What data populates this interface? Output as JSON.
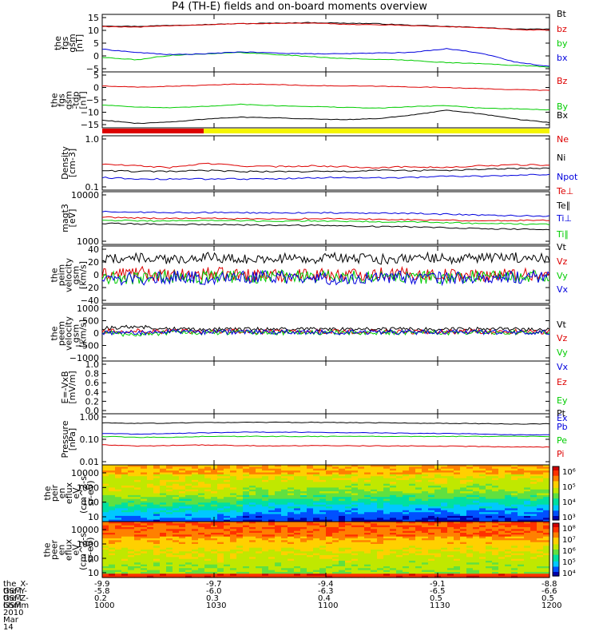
{
  "title": "P4 (TH-E) fields and on-board moments overview",
  "colors": {
    "black": "#000000",
    "red": "#dd0000",
    "green": "#00cc00",
    "blue": "#0000dd",
    "yellow": "#f5f500"
  },
  "chart_data": [
    {
      "type": "line",
      "name": "fgs_gsm",
      "ylabel": "the\nfgs\ngsm\n[nT]",
      "ylim": [
        -5,
        16
      ],
      "yticks": [
        "15",
        "10",
        "5",
        "0",
        "−5"
      ],
      "legend": [
        "Bt",
        "bz",
        "by",
        "bx"
      ],
      "series": [
        {
          "name": "Bt",
          "color": "black",
          "values": [
            11.8,
            11.6,
            12.0,
            12.3,
            12.6,
            12.8,
            13.0,
            12.8,
            12.6,
            12.0,
            11.6,
            11.2,
            10.6,
            10.6
          ]
        },
        {
          "name": "bz",
          "color": "red",
          "values": [
            11.6,
            11.3,
            11.9,
            12.2,
            12.6,
            12.7,
            12.8,
            12.4,
            12.2,
            11.9,
            11.5,
            11.2,
            10.4,
            10.2
          ]
        },
        {
          "name": "by",
          "color": "green",
          "values": [
            0.3,
            -0.6,
            1.1,
            1.6,
            2.1,
            1.4,
            0.6,
            -0.1,
            -0.4,
            -0.8,
            -1.6,
            -2.0,
            -2.6,
            -3.2
          ]
        },
        {
          "name": "bx",
          "color": "blue",
          "values": [
            3.3,
            2.1,
            1.3,
            1.6,
            2.3,
            1.9,
            1.6,
            1.6,
            1.9,
            2.1,
            3.5,
            1.9,
            -1.4,
            -3.0
          ]
        }
      ]
    },
    {
      "type": "line",
      "name": "fgs_gsm_zoom",
      "ylabel": "the\nfgs\ngsm\n-tdp\n[nT]",
      "ylim": [
        -17,
        6
      ],
      "yticks": [
        "5",
        "0",
        "−5",
        "−10",
        "−15"
      ],
      "legend": [
        "Bz",
        "By",
        "Bx"
      ],
      "series": [
        {
          "name": "Bz",
          "color": "red",
          "values": [
            0.2,
            -0.3,
            0.1,
            0.5,
            1.0,
            0.8,
            0.4,
            0.2,
            0.1,
            -0.2,
            -0.4,
            -0.9,
            -1.3,
            -1.6
          ]
        },
        {
          "name": "By",
          "color": "green",
          "values": [
            -7.6,
            -8.4,
            -8.8,
            -8.2,
            -7.3,
            -7.9,
            -8.2,
            -8.6,
            -8.9,
            -8.3,
            -7.8,
            -8.9,
            -9.2,
            -9.6
          ]
        },
        {
          "name": "Bx",
          "color": "black",
          "values": [
            -13.8,
            -15.2,
            -14.6,
            -13.4,
            -12.6,
            -12.9,
            -13.3,
            -13.6,
            -13.2,
            -11.8,
            -9.8,
            -11.2,
            -13.4,
            -14.8
          ]
        }
      ]
    },
    {
      "type": "line",
      "name": "density",
      "ylabel": "Density\n[cm-3]",
      "ylim": [
        0.1,
        1.0
      ],
      "log": true,
      "yticks": [
        "1.0",
        "0.1"
      ],
      "legend": [
        "Ne",
        "Ni",
        "Npot"
      ],
      "series": [
        {
          "name": "Ne",
          "color": "red",
          "values": [
            0.3,
            0.28,
            0.26,
            0.31,
            0.28,
            0.27,
            0.28,
            0.27,
            0.26,
            0.27,
            0.26,
            0.28,
            0.29,
            0.29
          ]
        },
        {
          "name": "Ni",
          "color": "black",
          "values": [
            0.23,
            0.22,
            0.22,
            0.23,
            0.22,
            0.22,
            0.22,
            0.22,
            0.23,
            0.23,
            0.23,
            0.24,
            0.25,
            0.25
          ]
        },
        {
          "name": "Npot",
          "color": "blue",
          "values": [
            0.17,
            0.16,
            0.16,
            0.16,
            0.16,
            0.16,
            0.17,
            0.17,
            0.17,
            0.17,
            0.18,
            0.18,
            0.19,
            0.19
          ]
        }
      ]
    },
    {
      "type": "line",
      "name": "temperature",
      "ylabel": "magt3\n[eV]",
      "ylim": [
        1000,
        10000
      ],
      "log": true,
      "yticks": [
        "10000",
        "1000"
      ],
      "legend": [
        "Te⊥",
        "Te∥",
        "Ti⊥",
        "Ti∥"
      ],
      "series": [
        {
          "name": "Te⊥",
          "color": "red",
          "values": [
            3300,
            3200,
            3100,
            3150,
            3050,
            3000,
            3100,
            3050,
            3000,
            2950,
            2900,
            2800,
            2850,
            2900
          ]
        },
        {
          "name": "Te∥",
          "color": "black",
          "values": [
            2500,
            2450,
            2400,
            2400,
            2350,
            2300,
            2300,
            2250,
            2200,
            2150,
            2100,
            2000,
            1950,
            1900
          ]
        },
        {
          "name": "Ti⊥",
          "color": "blue",
          "values": [
            4200,
            4100,
            4000,
            4050,
            4000,
            3950,
            4000,
            3950,
            3900,
            3850,
            3750,
            3600,
            3500,
            3450
          ]
        },
        {
          "name": "Ti∥",
          "color": "green",
          "values": [
            2900,
            2800,
            2800,
            2850,
            2800,
            2750,
            2800,
            2750,
            2700,
            2650,
            2600,
            2500,
            2450,
            2400
          ]
        }
      ]
    },
    {
      "type": "line",
      "name": "peim_velocity",
      "ylabel": "the\npeim\nvelocity\ngsm\n[km/s]",
      "ylim": [
        -40,
        40
      ],
      "yticks": [
        "40",
        "20",
        "0",
        "−20",
        "−40"
      ],
      "legend": [
        "Vt",
        "Vz",
        "Vy",
        "Vx"
      ],
      "series": [
        {
          "name": "Vt",
          "color": "black",
          "values": [
            22,
            24,
            20,
            26,
            21,
            23,
            22,
            24,
            21,
            25,
            22,
            23,
            24,
            22
          ]
        },
        {
          "name": "Vz",
          "color": "red",
          "values": [
            0,
            3,
            -2,
            2,
            0,
            -1,
            1,
            0,
            2,
            1,
            0,
            -1,
            1,
            0
          ]
        },
        {
          "name": "Vy",
          "color": "green",
          "values": [
            -3,
            -5,
            -2,
            -4,
            -3,
            -2,
            -3,
            -4,
            -2,
            -3,
            -4,
            -3,
            -2,
            -3
          ]
        },
        {
          "name": "Vx",
          "color": "blue",
          "values": [
            -4,
            -6,
            -3,
            -5,
            -4,
            -3,
            -4,
            -5,
            -3,
            -4,
            -5,
            -4,
            -3,
            -4
          ]
        }
      ]
    },
    {
      "type": "line",
      "name": "peem_velocity",
      "ylabel": "the\npeem\nvelocity\ngsm\n[km/s]",
      "ylim": [
        -1100,
        1000
      ],
      "yticks": [
        "1000",
        "500",
        "0",
        "−500",
        "−1000"
      ],
      "legend": [
        "Vt",
        "Vz",
        "Vy",
        "Vx"
      ],
      "series": [
        {
          "name": "Vt",
          "color": "black",
          "values": [
            120,
            200,
            110,
            100,
            90,
            100,
            95,
            90,
            100,
            95,
            90,
            100,
            95,
            90
          ]
        },
        {
          "name": "Vz",
          "color": "red",
          "values": [
            10,
            20,
            0,
            10,
            5,
            0,
            5,
            10,
            0,
            5,
            5,
            0,
            5,
            0
          ]
        },
        {
          "name": "Vy",
          "color": "green",
          "values": [
            -40,
            -120,
            -30,
            -30,
            -20,
            -30,
            -25,
            -30,
            -20,
            -25,
            -30,
            -20,
            -25,
            -30
          ]
        },
        {
          "name": "Vx",
          "color": "blue",
          "values": [
            -20,
            -40,
            -10,
            -20,
            -10,
            -15,
            -10,
            -20,
            -10,
            -15,
            -10,
            -15,
            -10,
            -15
          ]
        }
      ]
    },
    {
      "type": "line",
      "name": "electric_field",
      "ylabel": "E=-VxB\n[mV/m]",
      "ylim": [
        0,
        1
      ],
      "yticks": [
        "1.0",
        "0.8",
        "0.6",
        "0.4",
        "0.2",
        "0.0"
      ],
      "legend": [
        "Ez",
        "Ey",
        "Ex"
      ],
      "series": []
    },
    {
      "type": "line",
      "name": "pressure",
      "ylabel": "Pressure\n[nPa]",
      "ylim": [
        0.01,
        1.0
      ],
      "log": true,
      "yticks": [
        "1.00",
        "0.10",
        "0.01"
      ],
      "legend": [
        "Pt",
        "Pb",
        "Pe",
        "Pi"
      ],
      "series": [
        {
          "name": "Pt",
          "color": "black",
          "values": [
            0.44,
            0.42,
            0.43,
            0.45,
            0.46,
            0.46,
            0.46,
            0.45,
            0.44,
            0.43,
            0.42,
            0.41,
            0.4,
            0.4
          ]
        },
        {
          "name": "Pb",
          "color": "blue",
          "values": [
            0.17,
            0.16,
            0.17,
            0.18,
            0.19,
            0.19,
            0.19,
            0.18,
            0.18,
            0.17,
            0.17,
            0.16,
            0.15,
            0.15
          ]
        },
        {
          "name": "Pe",
          "color": "green",
          "values": [
            0.13,
            0.12,
            0.12,
            0.13,
            0.13,
            0.13,
            0.13,
            0.13,
            0.13,
            0.13,
            0.13,
            0.13,
            0.13,
            0.13
          ]
        },
        {
          "name": "Pi",
          "color": "red",
          "values": [
            0.062,
            0.054,
            0.058,
            0.06,
            0.057,
            0.055,
            0.057,
            0.056,
            0.055,
            0.055,
            0.054,
            0.052,
            0.05,
            0.05
          ]
        }
      ]
    },
    {
      "type": "heatmap",
      "name": "peir_en_eflux",
      "ylabel": "the\npeir\nen\neflux\neV\n(cm^2-s-\nsr-eV)",
      "ylim": [
        10,
        20000
      ],
      "log": true,
      "yticks": [
        "10000",
        "1000",
        "100",
        "10"
      ],
      "colorbar_ticks": [
        "10⁶",
        "10⁵",
        "10⁴",
        "10³"
      ]
    },
    {
      "type": "heatmap",
      "name": "peer_en_eflux",
      "ylabel": "the\npeer\nen\neflux\neV\n(cm^2-s-\nsr-eV)",
      "ylim": [
        10,
        20000
      ],
      "log": true,
      "yticks": [
        "10000",
        "1000",
        "100",
        "10"
      ],
      "colorbar_ticks": [
        "10⁸",
        "10⁷",
        "10⁶",
        "10⁵",
        "10⁴"
      ]
    }
  ],
  "x_axis": {
    "ticks": [
      "1000",
      "1030",
      "1100",
      "1130",
      "1200"
    ],
    "rows": [
      {
        "label": "the_X-GSM",
        "values": [
          "-9.9",
          "-9.7",
          "-9.4",
          "-9.1",
          "-8.8"
        ]
      },
      {
        "label": "the_Y-GSM",
        "values": [
          "-5.8",
          "-6.0",
          "-6.3",
          "-6.5",
          "-6.6"
        ]
      },
      {
        "label": "the_Z-GSM",
        "values": [
          "0.2",
          "0.3",
          "0.4",
          "0.5",
          "0.5"
        ]
      },
      {
        "label": "hhmm",
        "values": [
          "1000",
          "1030",
          "1100",
          "1130",
          "1200"
        ]
      }
    ],
    "date": "2010 Mar 14"
  }
}
